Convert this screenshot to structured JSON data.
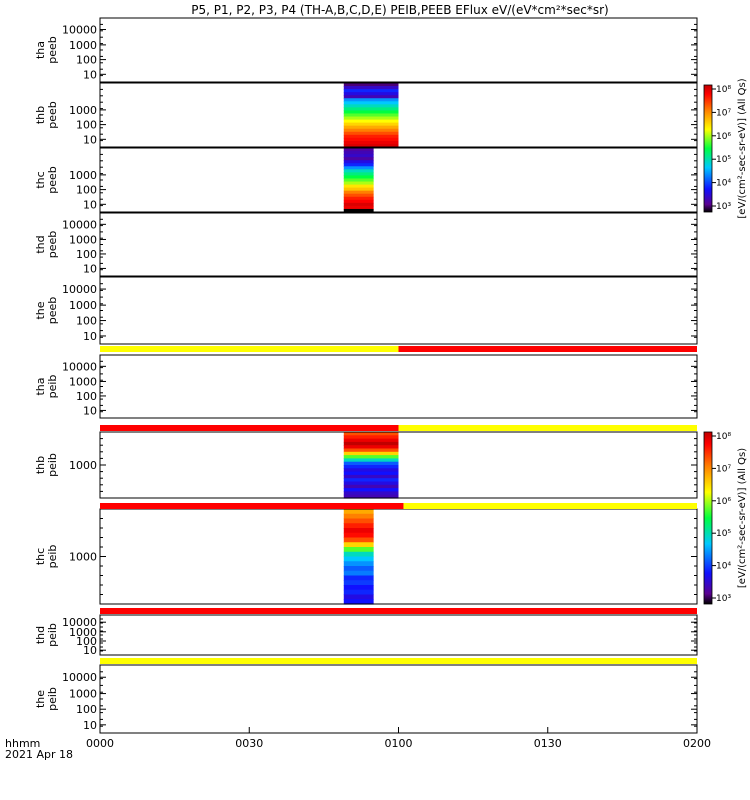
{
  "chart_data": {
    "type": "heatmap",
    "title": "P5, P1, P2, P3, P4 (TH-A,B,C,D,E) PEIB,PEEB EFlux eV/(eV*cm²*sec*sr)",
    "x_ticks": [
      "0000",
      "0030",
      "0100",
      "0130",
      "0200"
    ],
    "x_range_minutes": [
      0,
      120
    ],
    "x_label": "hhmm",
    "date_label": "2021 Apr 18",
    "colorbar_label": "[eV/(cm²-sec-sr-eV)] (All Qs)",
    "colorbar_ticks": [
      "10⁸",
      "10⁷",
      "10⁶",
      "10⁵",
      "10⁴",
      "10³"
    ],
    "colorbar_log_range": [
      3,
      8
    ],
    "panels": [
      {
        "name": "tha peeb",
        "y_ticks": [
          "10000",
          "1000",
          "100",
          "10"
        ],
        "log_scale": true,
        "data_block": null
      },
      {
        "name": "thb peeb",
        "y_ticks": [
          "1000",
          "100",
          "10"
        ],
        "log_scale": true,
        "data_block": {
          "t_start": 49,
          "t_end": 60,
          "levels": [
            0.05,
            0.12,
            0.2,
            0.15,
            0.1,
            0.3,
            0.35,
            0.4,
            0.45,
            0.5,
            0.55,
            0.6,
            0.65,
            0.7,
            0.75,
            0.8,
            0.85,
            0.9,
            0.92,
            0.95,
            0.97
          ]
        }
      },
      {
        "name": "thc peeb",
        "y_ticks": [
          "1000",
          "100",
          "10"
        ],
        "log_scale": true,
        "data_block": {
          "t_start": 49,
          "t_end": 55,
          "levels": [
            0.08,
            0.1,
            0.12,
            0.08,
            0.15,
            0.2,
            0.3,
            0.4,
            0.45,
            0.5,
            0.55,
            0.6,
            0.68,
            0.72,
            0.8,
            0.85,
            0.9,
            0.93,
            0.97,
            0.95,
            0.0
          ]
        }
      },
      {
        "name": "thd peeb",
        "y_ticks": [
          "10000",
          "1000",
          "100",
          "10"
        ],
        "log_scale": true,
        "data_block": null
      },
      {
        "name": "the peeb",
        "y_ticks": [
          "10000",
          "1000",
          "100",
          "10"
        ],
        "log_scale": true,
        "data_block": null
      },
      {
        "name": "tha peib",
        "y_ticks": [
          "10000",
          "1000",
          "100",
          "10"
        ],
        "log_scale": true,
        "data_block": null
      },
      {
        "name": "thb peib",
        "y_ticks": [
          "1000"
        ],
        "log_scale": true,
        "data_block": {
          "t_start": 49,
          "t_end": 60,
          "levels": [
            0.85,
            0.9,
            0.95,
            1.0,
            0.95,
            0.85,
            0.7,
            0.55,
            0.4,
            0.25,
            0.2,
            0.15,
            0.18,
            0.12,
            0.2,
            0.15,
            0.1,
            0.18,
            0.12,
            0.1
          ]
        }
      },
      {
        "name": "thc peib",
        "y_ticks": [
          "1000"
        ],
        "log_scale": true,
        "data_block": {
          "t_start": 49,
          "t_end": 55,
          "levels": [
            0.75,
            0.8,
            0.85,
            0.9,
            0.95,
            0.92,
            0.85,
            0.7,
            0.55,
            0.4,
            0.35,
            0.3,
            0.25,
            0.28,
            0.2,
            0.22,
            0.18,
            0.2,
            0.15,
            0.18
          ]
        }
      },
      {
        "name": "thd peib",
        "y_ticks": [
          "10000",
          "1000",
          "100",
          "10"
        ],
        "log_scale": true,
        "data_block": null
      },
      {
        "name": "the peib",
        "y_ticks": [
          "10000",
          "1000",
          "100",
          "10"
        ],
        "log_scale": true,
        "data_block": null
      }
    ],
    "mode_bars": [
      {
        "after_panel": "the peeb",
        "segments": [
          {
            "t_start": 0,
            "t_end": 60,
            "color": "#ffff00"
          },
          {
            "t_start": 60,
            "t_end": 120,
            "color": "#ff0000"
          }
        ]
      },
      {
        "after_panel": "tha peib",
        "segments": [
          {
            "t_start": 0,
            "t_end": 60,
            "color": "#ff0000"
          },
          {
            "t_start": 60,
            "t_end": 120,
            "color": "#ffff00"
          }
        ]
      },
      {
        "after_panel": "thb peib",
        "segments": [
          {
            "t_start": 0,
            "t_end": 61,
            "color": "#ff0000"
          },
          {
            "t_start": 61,
            "t_end": 120,
            "color": "#ffff00"
          }
        ]
      },
      {
        "after_panel": "thc peib",
        "segments": [
          {
            "t_start": 0,
            "t_end": 120,
            "color": "#ff0000"
          }
        ]
      },
      {
        "after_panel": "thd peib",
        "segments": [
          {
            "t_start": 0,
            "t_end": 120,
            "color": "#ffff00"
          }
        ]
      }
    ]
  }
}
